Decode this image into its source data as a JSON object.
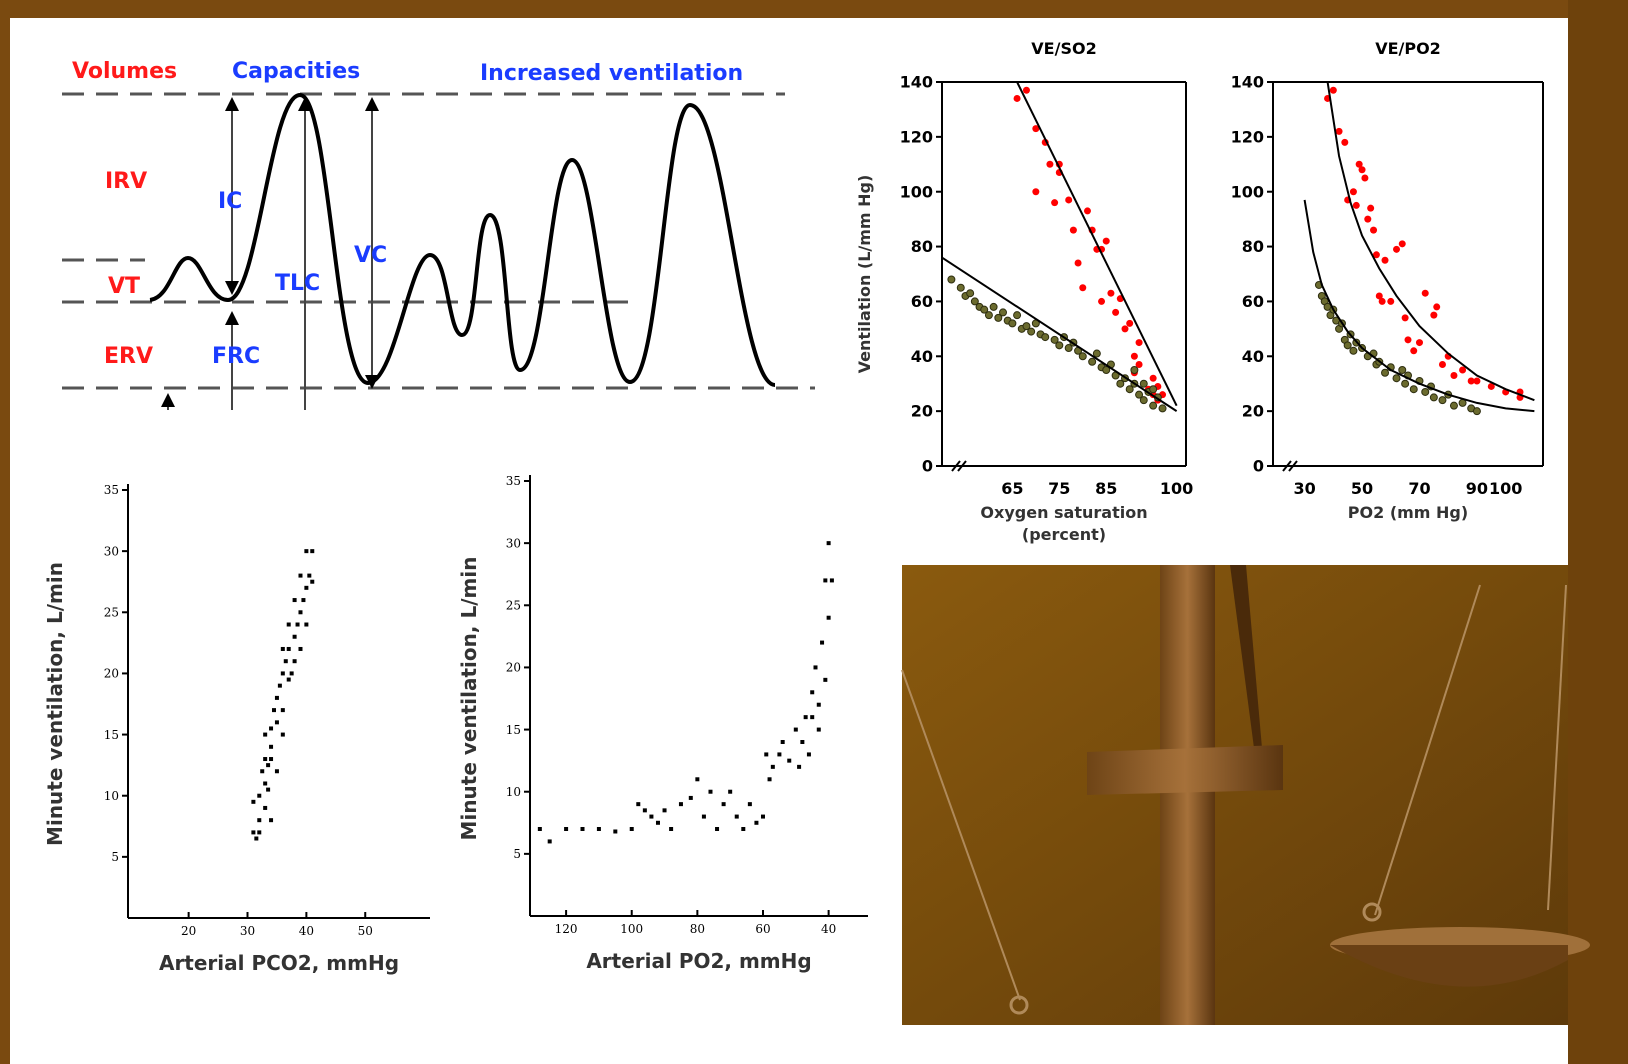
{
  "diagram": {
    "labels": {
      "volumes": "Volumes",
      "capacities": "Capacities",
      "increased": "Increased ventilation",
      "irv": "IRV",
      "ic": "IC",
      "vt": "VT",
      "tlc": "TLC",
      "vc": "VC",
      "erv": "ERV",
      "frc": "FRC"
    }
  },
  "chart_data": [
    {
      "type": "scatter",
      "title": "VE/SO2",
      "y_label": "Ventilation (L/mm Hg)",
      "x_label": [
        "Oxygen saturation",
        "(percent)"
      ],
      "xlim": [
        50,
        102
      ],
      "ylim": [
        0,
        140
      ],
      "xticks": [
        65,
        75,
        85,
        100
      ],
      "yticks": [
        0,
        20,
        40,
        60,
        80,
        100,
        120,
        140
      ],
      "series": [
        {
          "color": "#ff0000",
          "x": [
            66,
            68,
            70,
            70,
            72,
            73,
            74,
            75,
            75,
            77,
            78,
            79,
            80,
            81,
            82,
            83,
            84,
            85,
            84,
            86,
            87,
            88,
            89,
            90,
            91,
            91,
            92,
            93,
            94,
            95,
            96,
            97,
            96,
            95,
            92
          ],
          "values": [
            134,
            137,
            123,
            100,
            118,
            110,
            96,
            110,
            107,
            97,
            86,
            74,
            65,
            93,
            86,
            79,
            79,
            82,
            60,
            63,
            56,
            61,
            50,
            52,
            40,
            34,
            45,
            30,
            28,
            26,
            29,
            26,
            24,
            32,
            37
          ]
        },
        {
          "color": "#6b6b2e",
          "x": [
            52,
            54,
            55,
            56,
            57,
            58,
            59,
            60,
            61,
            62,
            63,
            64,
            65,
            66,
            67,
            68,
            69,
            70,
            71,
            72,
            74,
            75,
            76,
            77,
            78,
            79,
            80,
            82,
            83,
            84,
            85,
            86,
            87,
            88,
            89,
            90,
            91,
            92,
            93,
            94,
            95,
            96,
            97,
            95,
            93,
            91
          ],
          "values": [
            68,
            65,
            62,
            63,
            60,
            58,
            57,
            55,
            58,
            54,
            56,
            53,
            52,
            55,
            50,
            51,
            49,
            52,
            48,
            47,
            46,
            44,
            47,
            43,
            45,
            42,
            40,
            38,
            41,
            36,
            35,
            37,
            33,
            30,
            32,
            28,
            30,
            26,
            24,
            27,
            22,
            25,
            21,
            28,
            30,
            35
          ]
        },
        {
          "mode": "line",
          "color": "#000000",
          "x": [
            66,
            100
          ],
          "values": [
            140,
            22
          ]
        },
        {
          "mode": "line",
          "color": "#000000",
          "x": [
            50,
            100
          ],
          "values": [
            76,
            20
          ]
        }
      ]
    },
    {
      "type": "scatter",
      "title": "VE/PO2",
      "x_label": [
        "PO2 (mm Hg)"
      ],
      "xlim": [
        19,
        113
      ],
      "ylim": [
        0,
        140
      ],
      "xticks": [
        30,
        50,
        70,
        90,
        100
      ],
      "yticks": [
        0,
        20,
        40,
        60,
        80,
        100,
        120,
        140
      ],
      "series": [
        {
          "color": "#ff0000",
          "x": [
            38,
            40,
            42,
            44,
            45,
            47,
            48,
            49,
            50,
            51,
            52,
            53,
            54,
            55,
            56,
            57,
            58,
            60,
            62,
            64,
            65,
            66,
            68,
            70,
            72,
            75,
            76,
            78,
            80,
            82,
            85,
            88,
            90,
            95,
            100,
            105,
            105
          ],
          "values": [
            134,
            137,
            122,
            118,
            97,
            100,
            95,
            110,
            108,
            105,
            90,
            94,
            86,
            77,
            62,
            60,
            75,
            60,
            79,
            81,
            54,
            46,
            42,
            45,
            63,
            55,
            58,
            37,
            40,
            33,
            35,
            31,
            31,
            29,
            27,
            25,
            27
          ]
        },
        {
          "color": "#6b6b2e",
          "x": [
            35,
            36,
            37,
            38,
            39,
            40,
            41,
            42,
            43,
            44,
            45,
            46,
            47,
            48,
            50,
            52,
            54,
            55,
            56,
            58,
            60,
            62,
            64,
            65,
            66,
            68,
            70,
            72,
            74,
            75,
            78,
            80,
            82,
            85,
            88,
            90
          ],
          "values": [
            66,
            62,
            60,
            58,
            55,
            57,
            53,
            50,
            52,
            46,
            44,
            48,
            42,
            45,
            43,
            40,
            41,
            37,
            38,
            34,
            36,
            32,
            35,
            30,
            33,
            28,
            31,
            27,
            29,
            25,
            24,
            26,
            22,
            23,
            21,
            20
          ]
        },
        {
          "mode": "line",
          "color": "#000000",
          "x": [
            38,
            42,
            46,
            50,
            56,
            62,
            70,
            80,
            90,
            100,
            110
          ],
          "values": [
            140,
            113,
            96,
            84,
            72,
            62,
            51,
            41,
            33,
            28,
            24
          ]
        },
        {
          "mode": "line",
          "color": "#000000",
          "x": [
            30,
            33,
            36,
            40,
            45,
            50,
            60,
            70,
            80,
            90,
            100,
            110
          ],
          "values": [
            97,
            78,
            66,
            57,
            49,
            43,
            35,
            30,
            26,
            23,
            21,
            20
          ]
        }
      ]
    },
    {
      "type": "scatter",
      "y_label": "Minute ventilation, L/min",
      "x_label": [
        "Arterial PCO2, mmHg"
      ],
      "xlim": [
        9.7,
        61
      ],
      "ylim": [
        0,
        35
      ],
      "xticks": [
        20,
        30,
        40,
        50
      ],
      "yticks": [
        5,
        10,
        15,
        20,
        25,
        30,
        35
      ],
      "series": [
        {
          "color": "#000000",
          "x": [
            31,
            31.5,
            32,
            31,
            32,
            33,
            32.5,
            33,
            33.5,
            34,
            33,
            34,
            35,
            34.5,
            35,
            36,
            35.5,
            36,
            37,
            36.5,
            37,
            37.5,
            38,
            38,
            38.5,
            39,
            39,
            39.5,
            40,
            40,
            40.5,
            40,
            39,
            41,
            41,
            38,
            37,
            36,
            34,
            33,
            32,
            34,
            35,
            36,
            33.5
          ],
          "values": [
            7,
            6.5,
            8,
            9.5,
            10,
            11,
            12,
            13,
            12.5,
            14,
            15,
            15.5,
            16,
            17,
            18,
            17,
            19,
            20,
            19.5,
            21,
            22,
            20,
            21,
            23,
            24,
            22,
            25,
            26,
            24,
            27,
            28,
            30,
            28,
            30,
            27.5,
            26,
            24,
            22,
            13,
            9,
            7,
            8,
            12,
            15,
            10.5
          ]
        }
      ]
    },
    {
      "type": "scatter",
      "y_label": "Minute ventilation, L/min",
      "x_label": [
        "Arterial PO2, mmHg"
      ],
      "xlim": [
        131,
        28
      ],
      "ylim": [
        0,
        35
      ],
      "xticks": [
        120,
        100,
        80,
        60,
        40
      ],
      "yticks": [
        5,
        10,
        15,
        20,
        25,
        30,
        35
      ],
      "series": [
        {
          "color": "#000000",
          "x": [
            128,
            125,
            120,
            115,
            110,
            105,
            100,
            98,
            96,
            94,
            92,
            90,
            88,
            85,
            82,
            80,
            78,
            76,
            74,
            72,
            70,
            68,
            66,
            64,
            62,
            60,
            59,
            58,
            57,
            55,
            54,
            52,
            50,
            48,
            47,
            46,
            45,
            44,
            43,
            42,
            41,
            40,
            40,
            39,
            41,
            43,
            45,
            49
          ],
          "values": [
            7,
            6,
            7,
            7,
            7,
            6.8,
            7,
            9,
            8.5,
            8,
            7.5,
            8.5,
            7,
            9,
            9.5,
            11,
            8,
            10,
            7,
            9,
            10,
            8,
            7,
            9,
            7.5,
            8,
            13,
            11,
            12,
            13,
            14,
            12.5,
            15,
            14,
            16,
            13,
            18,
            20,
            17,
            22,
            27,
            24,
            30,
            27,
            19,
            15,
            16,
            12
          ]
        }
      ]
    }
  ]
}
